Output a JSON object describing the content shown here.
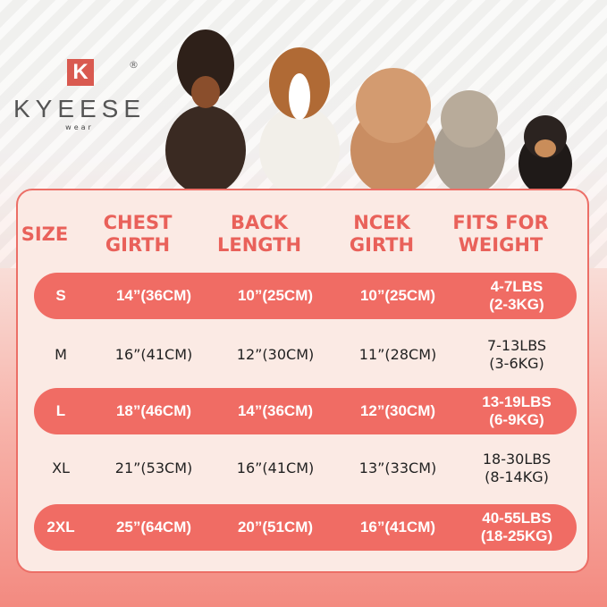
{
  "brand": {
    "letter": "K",
    "name": "KYEESE",
    "sub": "wear",
    "registered": "®"
  },
  "colors": {
    "accent": "#f06c64",
    "header_text": "#e9615a",
    "panel": "#fbeae4"
  },
  "table": {
    "headers": [
      [
        "SIZE"
      ],
      [
        "CHEST",
        "GIRTH"
      ],
      [
        "BACK",
        "LENGTH"
      ],
      [
        "NCEK",
        "GIRTH"
      ],
      [
        "FITS FOR",
        "WEIGHT"
      ]
    ],
    "rows": [
      {
        "size": "S",
        "chest": "14”(36CM)",
        "back": "10”(25CM)",
        "neck": "10”(25CM)",
        "weight_lbs": "4-7LBS",
        "weight_kg": "(2-3KG)",
        "highlighted": true
      },
      {
        "size": "M",
        "chest": "16”(41CM)",
        "back": "12”(30CM)",
        "neck": "11”(28CM)",
        "weight_lbs": "7-13LBS",
        "weight_kg": "(3-6KG)",
        "highlighted": false
      },
      {
        "size": "L",
        "chest": "18”(46CM)",
        "back": "14”(36CM)",
        "neck": "12”(30CM)",
        "weight_lbs": "13-19LBS",
        "weight_kg": "(6-9KG)",
        "highlighted": true
      },
      {
        "size": "XL",
        "chest": "21”(53CM)",
        "back": "16”(41CM)",
        "neck": "13”(33CM)",
        "weight_lbs": "18-30LBS",
        "weight_kg": "(8-14KG)",
        "highlighted": false
      },
      {
        "size": "2XL",
        "chest": "25”(64CM)",
        "back": "20”(51CM)",
        "neck": "16”(41CM)",
        "weight_lbs": "40-55LBS",
        "weight_kg": "(18-25KG)",
        "highlighted": true
      }
    ]
  }
}
